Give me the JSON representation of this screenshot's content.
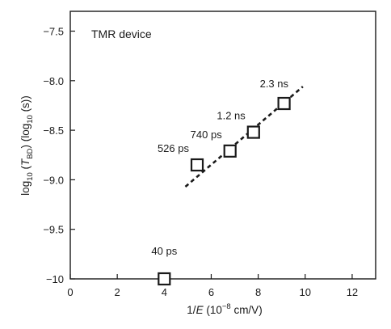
{
  "chart_data": {
    "type": "scatter",
    "annotation": "TMR device",
    "xlabel": {
      "main": "1/",
      "var": "E",
      "rest": " (10",
      "sup": "−8",
      "tail": " cm/V)"
    },
    "ylabel": {
      "a": "log",
      "a_sub": "10",
      "b": " (",
      "var": "T",
      "var_sub": "BD",
      "c": ") (log",
      "c_sub": "10",
      "d": " (s))"
    },
    "xlim": [
      0,
      13
    ],
    "ylim": [
      -10,
      -7.3
    ],
    "x_ticks": [
      {
        "value": 0,
        "label": "0"
      },
      {
        "value": 2,
        "label": "2"
      },
      {
        "value": 4,
        "label": "4"
      },
      {
        "value": 6,
        "label": "6"
      },
      {
        "value": 8,
        "label": "8"
      },
      {
        "value": 10,
        "label": "10"
      },
      {
        "value": 12,
        "label": "12"
      }
    ],
    "y_ticks": [
      {
        "value": -10,
        "label": "−10"
      },
      {
        "value": -9.5,
        "label": "−9.5"
      },
      {
        "value": -9,
        "label": "−9.0"
      },
      {
        "value": -8.5,
        "label": "−8.5"
      },
      {
        "value": -8,
        "label": "−8.0"
      },
      {
        "value": -7.5,
        "label": "−7.5"
      }
    ],
    "points": [
      {
        "x": 4.0,
        "y": -10.0,
        "label": "40 ps"
      },
      {
        "x": 5.4,
        "y": -8.85,
        "label": "526 ps"
      },
      {
        "x": 6.8,
        "y": -8.71,
        "label": "740 ps"
      },
      {
        "x": 7.8,
        "y": -8.52,
        "label": "1.2 ns"
      },
      {
        "x": 9.1,
        "y": -8.23,
        "label": "2.3 ns"
      }
    ],
    "fit_line": {
      "x": [
        4.9,
        9.9
      ],
      "y": [
        -9.07,
        -8.06
      ],
      "style": "dashed"
    }
  }
}
